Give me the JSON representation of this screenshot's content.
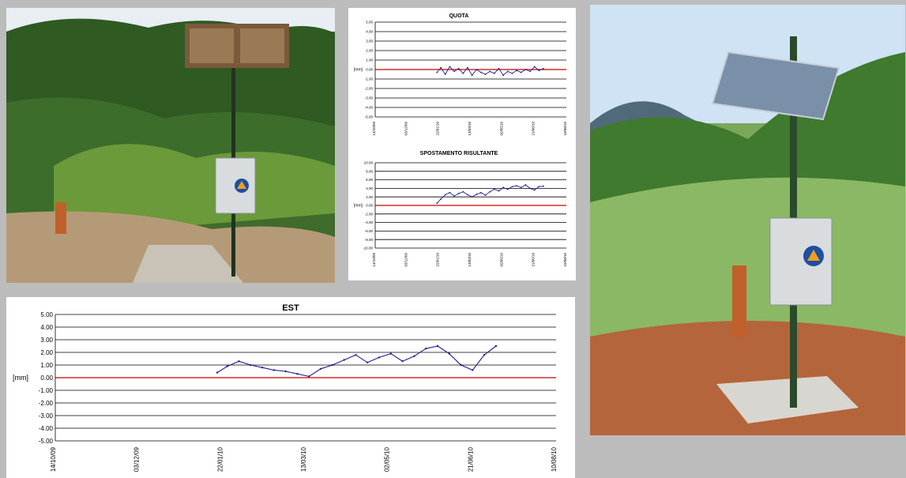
{
  "page": {
    "background": "#bcbcbc"
  },
  "photos": [
    {
      "name": "station-photo-left",
      "subject": "monitoring station pole with solar panel and grey control box on forested slope",
      "sky": "#e8eef3"
    },
    {
      "name": "station-photo-right",
      "subject": "monitoring station pole with solar panel, grey control box with civil protection emblem, grassy hillside",
      "sky": "#cfe3f4"
    }
  ],
  "colors": {
    "series": "#1f1f8f",
    "zero_line": "#cc0000",
    "grid": "#000000"
  },
  "chart_data": [
    {
      "id": "quota",
      "type": "line",
      "title": "QUOTA",
      "ylabel": "[mm]",
      "ylim": [
        -5,
        5
      ],
      "yticks": [
        "5.00",
        "4.00",
        "3.00",
        "2.00",
        "1.00",
        "0.00",
        "-1.00",
        "-2.00",
        "-3.00",
        "-4.00",
        "-5.00"
      ],
      "xticks": [
        "14/10/09",
        "03/12/09",
        "22/01/10",
        "13/03/10",
        "02/05/10",
        "21/06/10",
        "10/08/10"
      ],
      "x_domain": [
        "2009-10-14",
        "2010-08-10"
      ],
      "series": [
        {
          "x": [
            "2010-01-19",
            "2010-01-25",
            "2010-02-01",
            "2010-02-08",
            "2010-02-15",
            "2010-02-22",
            "2010-03-01",
            "2010-03-08",
            "2010-03-15",
            "2010-03-22",
            "2010-03-29",
            "2010-04-05",
            "2010-04-12",
            "2010-04-19",
            "2010-04-26",
            "2010-05-03",
            "2010-05-10",
            "2010-05-17",
            "2010-05-24",
            "2010-05-31",
            "2010-06-07",
            "2010-06-14",
            "2010-06-21",
            "2010-06-28",
            "2010-07-05"
          ],
          "y": [
            -0.3,
            0.2,
            -0.5,
            0.3,
            -0.2,
            0.1,
            -0.4,
            0.2,
            -0.6,
            0.0,
            -0.3,
            -0.5,
            -0.2,
            -0.4,
            0.1,
            -0.6,
            -0.2,
            -0.4,
            -0.1,
            -0.3,
            0.0,
            -0.2,
            0.3,
            -0.1,
            0.1
          ]
        }
      ]
    },
    {
      "id": "spostamento",
      "type": "line",
      "title": "SPOSTAMENTO RISULTANTE",
      "ylabel": "[mm]",
      "ylim": [
        -10,
        10
      ],
      "yticks": [
        "10.00",
        "8.00",
        "6.00",
        "4.00",
        "2.00",
        "0.00",
        "-2.00",
        "-4.00",
        "-6.00",
        "-8.00",
        "-10.00"
      ],
      "xticks": [
        "14/10/09",
        "03/12/09",
        "22/01/10",
        "13/03/10",
        "02/05/10",
        "21/06/10",
        "10/08/10"
      ],
      "x_domain": [
        "2009-10-14",
        "2010-08-10"
      ],
      "series": [
        {
          "x": [
            "2010-01-19",
            "2010-01-25",
            "2010-02-01",
            "2010-02-08",
            "2010-02-15",
            "2010-02-22",
            "2010-03-01",
            "2010-03-08",
            "2010-03-15",
            "2010-03-22",
            "2010-03-29",
            "2010-04-05",
            "2010-04-12",
            "2010-04-19",
            "2010-04-26",
            "2010-05-03",
            "2010-05-10",
            "2010-05-17",
            "2010-05-24",
            "2010-05-31",
            "2010-06-07",
            "2010-06-14",
            "2010-06-21",
            "2010-06-28",
            "2010-07-05"
          ],
          "y": [
            0.5,
            1.5,
            2.5,
            3.0,
            2.2,
            2.8,
            3.2,
            2.5,
            2.0,
            2.6,
            3.0,
            2.4,
            3.2,
            3.8,
            3.4,
            4.2,
            3.8,
            4.4,
            4.6,
            4.2,
            4.8,
            4.0,
            3.6,
            4.4,
            4.5
          ]
        }
      ]
    },
    {
      "id": "est",
      "type": "line",
      "title": "EST",
      "ylabel": "[mm]",
      "ylim": [
        -5,
        5
      ],
      "yticks": [
        "5.00",
        "4.00",
        "3.00",
        "2.00",
        "1.00",
        "0.00",
        "-1.00",
        "-2.00",
        "-3.00",
        "-4.00",
        "-5.00"
      ],
      "xticks": [
        "14/10/09",
        "03/12/09",
        "22/01/10",
        "13/03/10",
        "02/05/10",
        "21/06/10",
        "10/08/10"
      ],
      "x_domain": [
        "2009-10-14",
        "2010-08-10"
      ],
      "series": [
        {
          "x": [
            "2010-01-19",
            "2010-01-25",
            "2010-02-01",
            "2010-02-08",
            "2010-02-15",
            "2010-02-22",
            "2010-03-01",
            "2010-03-08",
            "2010-03-15",
            "2010-03-22",
            "2010-03-29",
            "2010-04-05",
            "2010-04-12",
            "2010-04-19",
            "2010-04-26",
            "2010-05-03",
            "2010-05-10",
            "2010-05-17",
            "2010-05-24",
            "2010-05-31",
            "2010-06-07",
            "2010-06-14",
            "2010-06-21",
            "2010-06-28",
            "2010-07-05"
          ],
          "y": [
            0.4,
            0.9,
            1.3,
            1.0,
            0.8,
            0.6,
            0.5,
            0.3,
            0.1,
            0.7,
            1.0,
            1.4,
            1.8,
            1.2,
            1.6,
            1.9,
            1.3,
            1.7,
            2.3,
            2.5,
            1.9,
            1.0,
            0.6,
            1.8,
            2.5
          ]
        }
      ]
    }
  ]
}
